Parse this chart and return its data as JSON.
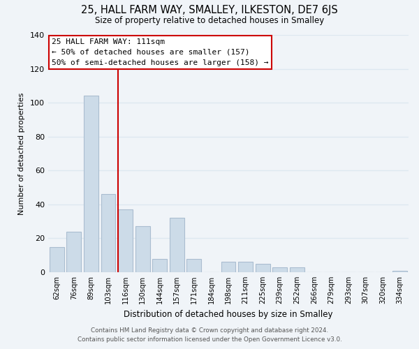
{
  "title": "25, HALL FARM WAY, SMALLEY, ILKESTON, DE7 6JS",
  "subtitle": "Size of property relative to detached houses in Smalley",
  "xlabel": "Distribution of detached houses by size in Smalley",
  "ylabel": "Number of detached properties",
  "bar_labels": [
    "62sqm",
    "76sqm",
    "89sqm",
    "103sqm",
    "116sqm",
    "130sqm",
    "144sqm",
    "157sqm",
    "171sqm",
    "184sqm",
    "198sqm",
    "211sqm",
    "225sqm",
    "239sqm",
    "252sqm",
    "266sqm",
    "279sqm",
    "293sqm",
    "307sqm",
    "320sqm",
    "334sqm"
  ],
  "bar_values": [
    15,
    24,
    104,
    46,
    37,
    27,
    8,
    32,
    8,
    0,
    6,
    6,
    5,
    3,
    3,
    0,
    0,
    0,
    0,
    0,
    1
  ],
  "bar_color": "#ccdbe8",
  "bar_edge_color": "#aabdd0",
  "vline_color": "#cc0000",
  "ylim": [
    0,
    140
  ],
  "yticks": [
    0,
    20,
    40,
    60,
    80,
    100,
    120,
    140
  ],
  "annotation_title": "25 HALL FARM WAY: 111sqm",
  "annotation_line1": "← 50% of detached houses are smaller (157)",
  "annotation_line2": "50% of semi-detached houses are larger (158) →",
  "annotation_box_color": "#ffffff",
  "annotation_box_edge": "#cc0000",
  "footer_line1": "Contains HM Land Registry data © Crown copyright and database right 2024.",
  "footer_line2": "Contains public sector information licensed under the Open Government Licence v3.0.",
  "background_color": "#f0f4f8",
  "grid_color": "#dde8f0"
}
